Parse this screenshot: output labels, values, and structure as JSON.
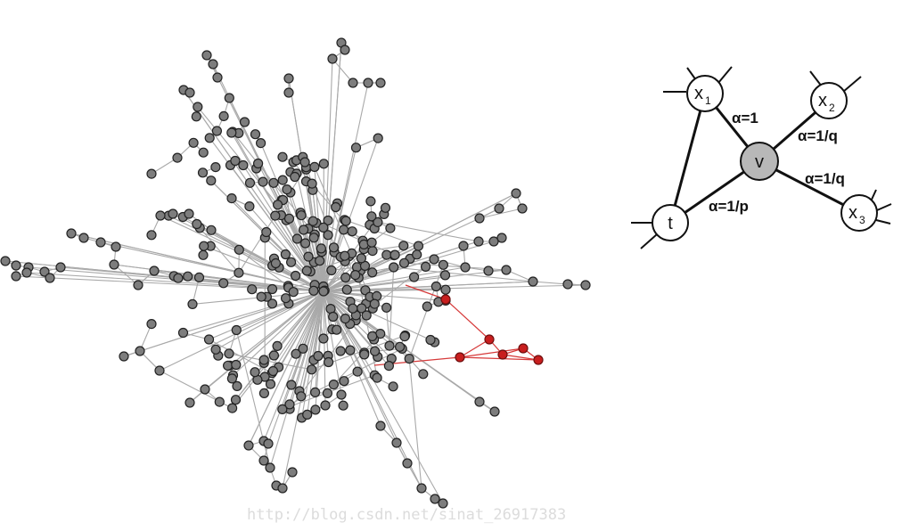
{
  "bias_diagram": {
    "nodes": {
      "x1": {
        "label": "x",
        "sub": "1"
      },
      "x2": {
        "label": "x",
        "sub": "2"
      },
      "x3": {
        "label": "x",
        "sub": "3"
      },
      "v": {
        "label": "v"
      },
      "t": {
        "label": "t"
      }
    },
    "edge_labels": {
      "v_x1": "α=1",
      "v_x2": "α=1/q",
      "v_x3": "α=1/q",
      "v_t": "α=1/p"
    }
  },
  "watermark": "http://blog.csdn.net/sinat_26917383",
  "colors": {
    "node_gray": "#7d7d7d",
    "edge_gray": "#a9a9a9",
    "walk_red": "#c81e1e",
    "current_node": "#b8b8b8"
  }
}
